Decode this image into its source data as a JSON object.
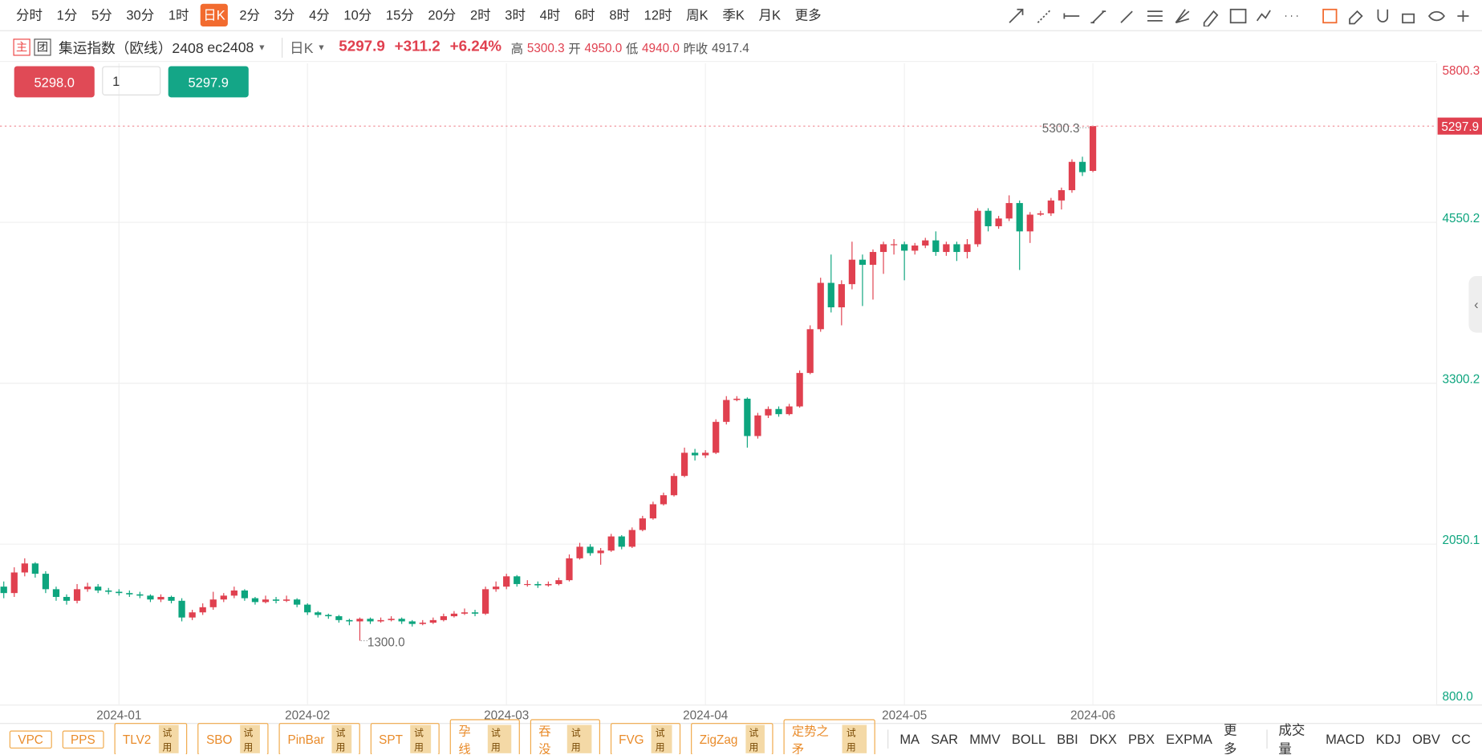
{
  "toolbar": {
    "periods": [
      "分时",
      "1分",
      "5分",
      "30分",
      "1时",
      "日K",
      "2分",
      "3分",
      "4分",
      "10分",
      "15分",
      "20分",
      "2时",
      "3时",
      "4时",
      "6时",
      "8时",
      "12时",
      "周K",
      "季K",
      "月K"
    ],
    "active_index": 5,
    "more": "更多"
  },
  "header": {
    "tags": [
      "主",
      "团"
    ],
    "name": "集运指数（欧线）2408",
    "code": "ec2408",
    "period": "日K",
    "price": "5297.9",
    "change": "+311.2",
    "pct": "+6.24%",
    "stats": [
      {
        "k": "高",
        "v": "5300.3"
      },
      {
        "k": "开",
        "v": "4950.0"
      },
      {
        "k": "低",
        "v": "4940.0"
      },
      {
        "k": "昨收",
        "v": "4917.4"
      }
    ]
  },
  "order": {
    "buy": "5298.0",
    "qty": "1",
    "sell": "5297.9"
  },
  "chart_data": {
    "type": "candlestick",
    "up_color": "#e0404f",
    "down_color": "#0da57e",
    "grid": true,
    "ylim": [
      800,
      5800.3
    ],
    "yticks": [
      {
        "value": 800,
        "label": "800.0"
      },
      2050.1,
      3300.2,
      4550.2,
      5800.3
    ],
    "high_label": "5300.3",
    "low_label": "1300.0",
    "categories": [
      null,
      null,
      null,
      null,
      null,
      null,
      null,
      null,
      null,
      null,
      null,
      "2024-01",
      null,
      null,
      null,
      null,
      null,
      null,
      null,
      null,
      null,
      null,
      null,
      null,
      null,
      null,
      null,
      null,
      null,
      "2024-02",
      null,
      null,
      null,
      null,
      null,
      null,
      null,
      null,
      null,
      null,
      null,
      null,
      null,
      null,
      null,
      null,
      null,
      null,
      "2024-03",
      null,
      null,
      null,
      null,
      null,
      null,
      null,
      null,
      null,
      null,
      null,
      null,
      null,
      null,
      null,
      null,
      null,
      null,
      "2024-04",
      null,
      null,
      null,
      null,
      null,
      null,
      null,
      null,
      null,
      null,
      null,
      null,
      null,
      null,
      null,
      null,
      null,
      null,
      "2024-05",
      null,
      null,
      null,
      null,
      null,
      null,
      null,
      null,
      null,
      null,
      null,
      null,
      null,
      null,
      null,
      null,
      null,
      "2024-06",
      null
    ],
    "ohlc": [
      [
        1720,
        1760,
        1630,
        1670
      ],
      [
        1670,
        1870,
        1640,
        1830
      ],
      [
        1830,
        1940,
        1800,
        1900
      ],
      [
        1900,
        1910,
        1790,
        1820
      ],
      [
        1820,
        1840,
        1670,
        1700
      ],
      [
        1700,
        1720,
        1610,
        1640
      ],
      [
        1640,
        1660,
        1580,
        1610
      ],
      [
        1610,
        1740,
        1590,
        1700
      ],
      [
        1700,
        1750,
        1680,
        1720
      ],
      [
        1720,
        1740,
        1670,
        1690
      ],
      [
        1690,
        1710,
        1660,
        1680
      ],
      [
        1680,
        1700,
        1650,
        1670
      ],
      [
        1670,
        1690,
        1640,
        1660
      ],
      [
        1660,
        1680,
        1630,
        1650
      ],
      [
        1650,
        1660,
        1600,
        1620
      ],
      [
        1620,
        1660,
        1600,
        1640
      ],
      [
        1640,
        1650,
        1590,
        1610
      ],
      [
        1610,
        1630,
        1450,
        1480
      ],
      [
        1480,
        1540,
        1460,
        1520
      ],
      [
        1520,
        1590,
        1500,
        1560
      ],
      [
        1560,
        1680,
        1540,
        1620
      ],
      [
        1620,
        1670,
        1600,
        1650
      ],
      [
        1650,
        1720,
        1630,
        1690
      ],
      [
        1690,
        1700,
        1610,
        1630
      ],
      [
        1630,
        1640,
        1580,
        1600
      ],
      [
        1600,
        1650,
        1590,
        1620
      ],
      [
        1620,
        1640,
        1590,
        1610
      ],
      [
        1610,
        1650,
        1600,
        1620
      ],
      [
        1620,
        1630,
        1560,
        1580
      ],
      [
        1580,
        1590,
        1500,
        1520
      ],
      [
        1520,
        1530,
        1480,
        1500
      ],
      [
        1500,
        1510,
        1470,
        1490
      ],
      [
        1490,
        1500,
        1440,
        1460
      ],
      [
        1460,
        1470,
        1420,
        1450
      ],
      [
        1450,
        1480,
        1300,
        1470
      ],
      [
        1470,
        1480,
        1430,
        1450
      ],
      [
        1450,
        1480,
        1440,
        1460
      ],
      [
        1460,
        1490,
        1450,
        1470
      ],
      [
        1470,
        1480,
        1430,
        1450
      ],
      [
        1450,
        1460,
        1410,
        1430
      ],
      [
        1430,
        1460,
        1420,
        1440
      ],
      [
        1440,
        1480,
        1430,
        1460
      ],
      [
        1460,
        1510,
        1450,
        1490
      ],
      [
        1490,
        1530,
        1480,
        1510
      ],
      [
        1510,
        1550,
        1500,
        1520
      ],
      [
        1520,
        1540,
        1490,
        1510
      ],
      [
        1510,
        1720,
        1500,
        1700
      ],
      [
        1700,
        1760,
        1680,
        1720
      ],
      [
        1720,
        1820,
        1700,
        1800
      ],
      [
        1800,
        1810,
        1720,
        1740
      ],
      [
        1740,
        1770,
        1720,
        1740
      ],
      [
        1740,
        1760,
        1710,
        1730
      ],
      [
        1730,
        1760,
        1720,
        1740
      ],
      [
        1740,
        1790,
        1730,
        1770
      ],
      [
        1770,
        1970,
        1760,
        1940
      ],
      [
        1940,
        2060,
        1930,
        2030
      ],
      [
        2030,
        2050,
        1960,
        1980
      ],
      [
        1980,
        2020,
        1890,
        2000
      ],
      [
        2000,
        2130,
        1990,
        2110
      ],
      [
        2110,
        2120,
        2010,
        2030
      ],
      [
        2030,
        2180,
        2020,
        2160
      ],
      [
        2160,
        2270,
        2150,
        2250
      ],
      [
        2250,
        2380,
        2240,
        2360
      ],
      [
        2360,
        2450,
        2350,
        2430
      ],
      [
        2430,
        2600,
        2420,
        2580
      ],
      [
        2580,
        2800,
        2570,
        2760
      ],
      [
        2760,
        2790,
        2700,
        2740
      ],
      [
        2740,
        2780,
        2720,
        2760
      ],
      [
        2760,
        3020,
        2750,
        3000
      ],
      [
        3000,
        3200,
        2980,
        3170
      ],
      [
        3170,
        3200,
        3160,
        3180
      ],
      [
        3180,
        3190,
        2800,
        2890
      ],
      [
        2890,
        3070,
        2870,
        3050
      ],
      [
        3050,
        3120,
        3030,
        3100
      ],
      [
        3100,
        3120,
        3040,
        3060
      ],
      [
        3060,
        3140,
        3050,
        3120
      ],
      [
        3120,
        3400,
        3110,
        3380
      ],
      [
        3380,
        3750,
        3370,
        3720
      ],
      [
        3720,
        4120,
        3700,
        4080
      ],
      [
        4080,
        4300,
        3850,
        3890
      ],
      [
        3890,
        4100,
        3750,
        4070
      ],
      [
        4070,
        4400,
        4030,
        4260
      ],
      [
        4260,
        4300,
        3900,
        4220
      ],
      [
        4220,
        4340,
        3950,
        4320
      ],
      [
        4320,
        4400,
        4150,
        4380
      ],
      [
        4380,
        4420,
        4300,
        4380
      ],
      [
        4380,
        4400,
        4100,
        4330
      ],
      [
        4330,
        4390,
        4300,
        4370
      ],
      [
        4370,
        4430,
        4350,
        4410
      ],
      [
        4410,
        4480,
        4290,
        4320
      ],
      [
        4320,
        4400,
        4290,
        4380
      ],
      [
        4380,
        4400,
        4250,
        4320
      ],
      [
        4320,
        4420,
        4270,
        4380
      ],
      [
        4380,
        4660,
        4360,
        4640
      ],
      [
        4640,
        4660,
        4480,
        4520
      ],
      [
        4520,
        4600,
        4500,
        4580
      ],
      [
        4580,
        4760,
        4560,
        4700
      ],
      [
        4700,
        4720,
        4180,
        4480
      ],
      [
        4480,
        4630,
        4390,
        4610
      ],
      [
        4610,
        4640,
        4600,
        4620
      ],
      [
        4620,
        4740,
        4600,
        4720
      ],
      [
        4720,
        4820,
        4650,
        4800
      ],
      [
        4800,
        5040,
        4780,
        5020
      ],
      [
        5020,
        5060,
        4910,
        4940
      ],
      [
        4950,
        5300.3,
        4940,
        5297.9
      ]
    ]
  },
  "bottom": {
    "strategies": [
      {
        "name": "VPC"
      },
      {
        "name": "PPS"
      },
      {
        "name": "TLV2",
        "badge": "试用"
      },
      {
        "name": "SBO",
        "badge": "试用"
      },
      {
        "name": "PinBar",
        "badge": "试用"
      },
      {
        "name": "SPT",
        "badge": "试用"
      },
      {
        "name": "孕线",
        "badge": "试用"
      },
      {
        "name": "吞没",
        "badge": "试用"
      },
      {
        "name": "FVG",
        "badge": "试用"
      },
      {
        "name": "ZigZag",
        "badge": "试用"
      },
      {
        "name": "定势之矛",
        "badge": "试用"
      }
    ],
    "main": [
      "MA",
      "SAR",
      "MMV",
      "BOLL",
      "BBI",
      "DKX",
      "PBX",
      "EXPMA"
    ],
    "more": "更多",
    "sub": [
      "成交量",
      "MACD",
      "KDJ",
      "OBV",
      "CC"
    ]
  }
}
